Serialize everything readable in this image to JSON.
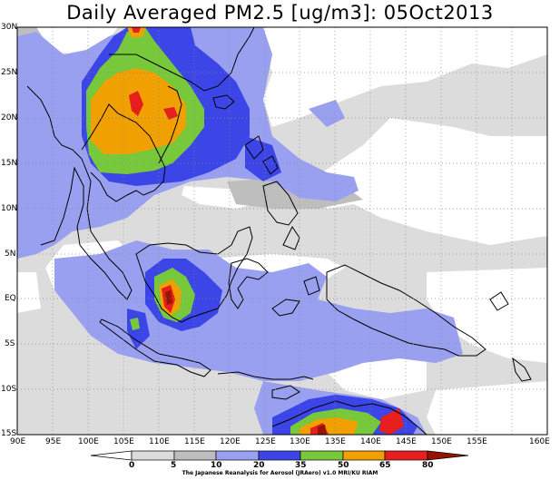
{
  "title": "Daily Averaged PM2.5 [ug/m3]: 05Oct2013",
  "lat_labels": [
    "30N",
    "25N",
    "20N",
    "15N",
    "10N",
    "5N",
    "EQ",
    "5S",
    "10S",
    "15S"
  ],
  "lon_labels": [
    "90E",
    "95E",
    "100E",
    "105E",
    "110E",
    "115E",
    "120E",
    "125E",
    "130E",
    "135E",
    "140E",
    "145E",
    "150E",
    "155E",
    "160E"
  ],
  "colorbar": {
    "ticks": [
      "0",
      "5",
      "10",
      "20",
      "35",
      "50",
      "65",
      "80"
    ],
    "colors": [
      "#ffffff",
      "#dcdcdc",
      "#bebebe",
      "#9aa0f0",
      "#3c46e6",
      "#78c83c",
      "#f0a000",
      "#e61e1e",
      "#961400"
    ]
  },
  "credit": "The Japanese Reanalysis for Aerosol (JRAero) v1.0 MRI/KU RIAM"
}
